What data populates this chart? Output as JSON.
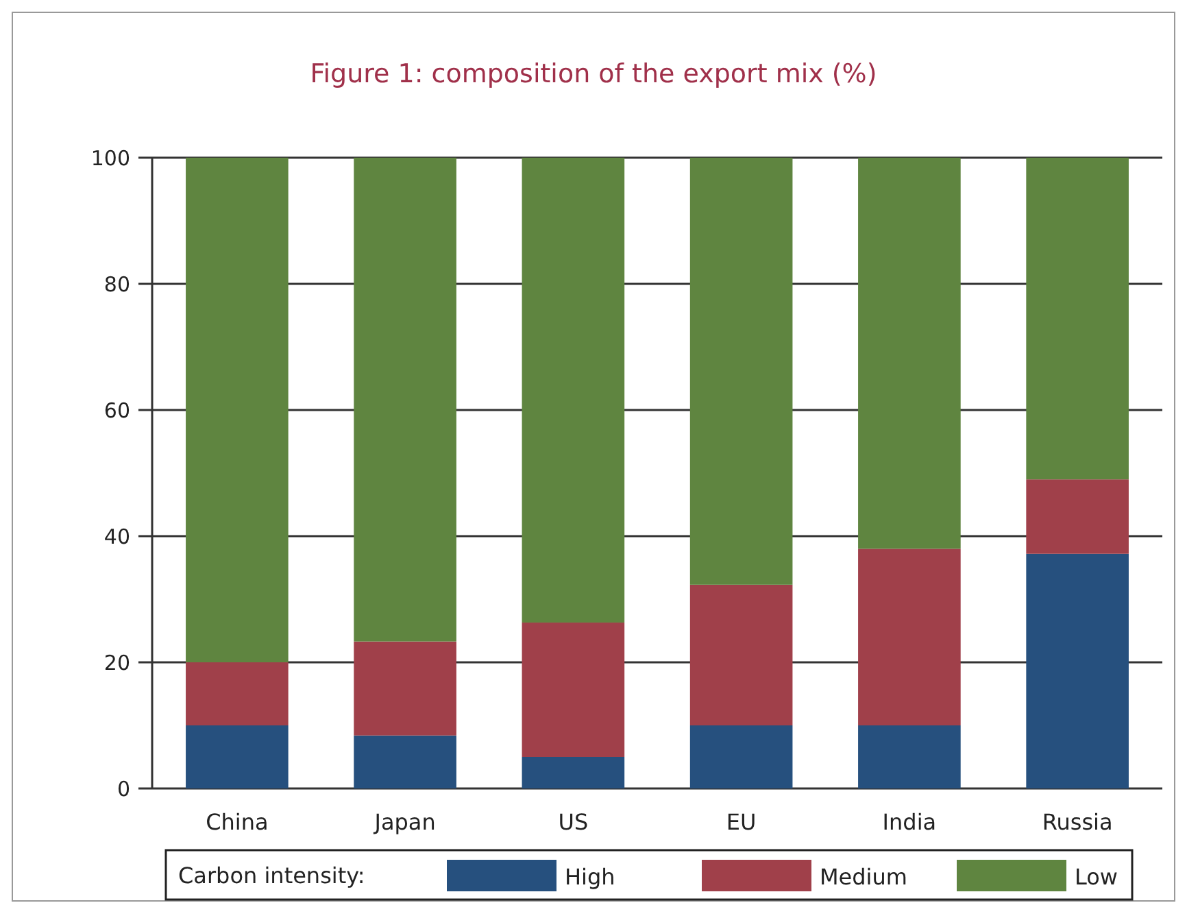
{
  "chart_data": {
    "type": "bar",
    "title": "Figure 1: composition of the export mix (%)",
    "categories": [
      "China",
      "Japan",
      "US",
      "EU",
      "India",
      "Russia"
    ],
    "series": [
      {
        "name": "High",
        "color": "#26507e",
        "values": [
          10,
          8.4,
          5,
          10,
          10,
          37.2
        ]
      },
      {
        "name": "Medium",
        "color": "#a0404a",
        "values": [
          10,
          14.9,
          21.3,
          22.3,
          28,
          11.8
        ]
      },
      {
        "name": "Low",
        "color": "#5f8540",
        "values": [
          80,
          76.7,
          73.7,
          67.7,
          62,
          51
        ]
      }
    ],
    "stacked": true,
    "ylim": [
      0,
      100
    ],
    "yticks": [
      0,
      20,
      40,
      60,
      80,
      100
    ],
    "grid": "y",
    "legend": "bottom",
    "legend_title": "Carbon intensity:"
  }
}
